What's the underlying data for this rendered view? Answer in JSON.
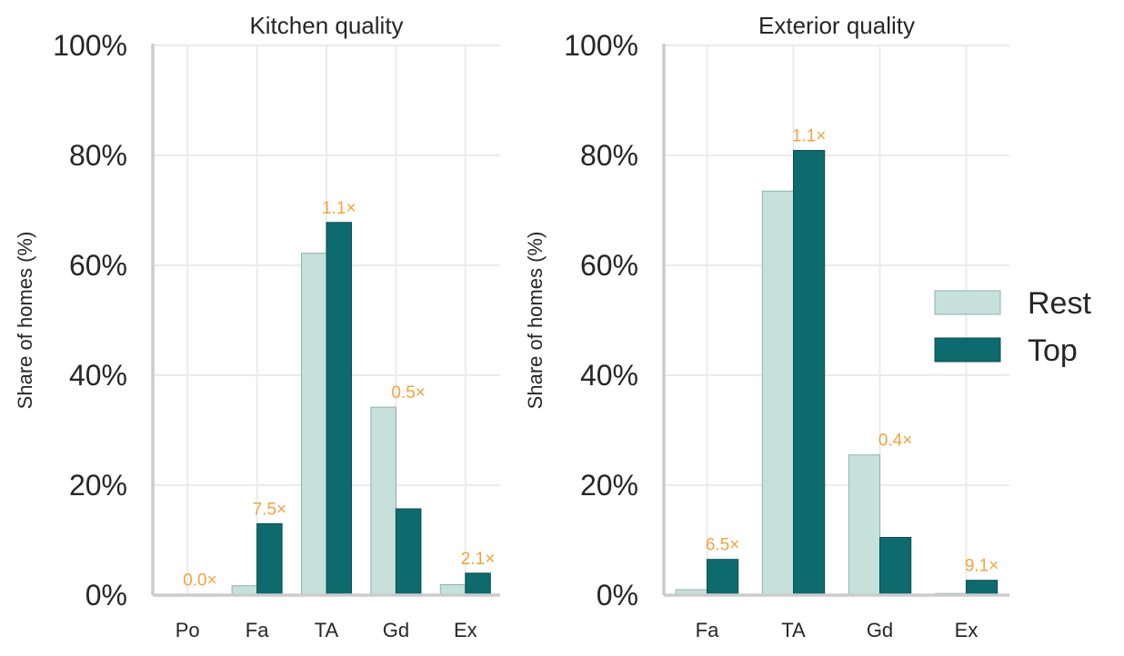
{
  "colors": {
    "rest": "#c6e0dc",
    "rest_edge": "#8fb2ac",
    "top": "#0d6b6d",
    "annotation": "#f2a33c"
  },
  "legend": {
    "placement": "right",
    "entries": [
      {
        "label": "Rest",
        "series": "Rest"
      },
      {
        "label": "Top",
        "series": "Top"
      }
    ]
  },
  "chart_data": [
    {
      "type": "bar",
      "title": "Kitchen quality",
      "ylabel": "Share of homes (%)",
      "xlabel": "",
      "ylim": [
        0,
        100
      ],
      "yticks": [
        "0%",
        "20%",
        "40%",
        "60%",
        "80%",
        "100%"
      ],
      "grid": true,
      "categories": [
        "Po",
        "Fa",
        "TA",
        "Gd",
        "Ex"
      ],
      "series": [
        {
          "name": "Rest",
          "values": [
            0.1,
            1.7,
            62.2,
            34.2,
            1.9
          ]
        },
        {
          "name": "Top",
          "values": [
            0.0,
            13.0,
            67.8,
            15.7,
            4.0
          ]
        }
      ],
      "annotations": [
        "0.0×",
        "7.5×",
        "1.1×",
        "0.5×",
        "2.1×"
      ]
    },
    {
      "type": "bar",
      "title": "Exterior quality",
      "ylabel": "Share of homes (%)",
      "xlabel": "",
      "ylim": [
        0,
        100
      ],
      "yticks": [
        "0%",
        "20%",
        "40%",
        "60%",
        "80%",
        "100%"
      ],
      "grid": true,
      "categories": [
        "Fa",
        "TA",
        "Gd",
        "Ex"
      ],
      "series": [
        {
          "name": "Rest",
          "values": [
            1.0,
            73.5,
            25.5,
            0.3
          ]
        },
        {
          "name": "Top",
          "values": [
            6.5,
            80.9,
            10.5,
            2.7
          ]
        }
      ],
      "annotations": [
        "6.5×",
        "1.1×",
        "0.4×",
        "9.1×"
      ]
    }
  ]
}
